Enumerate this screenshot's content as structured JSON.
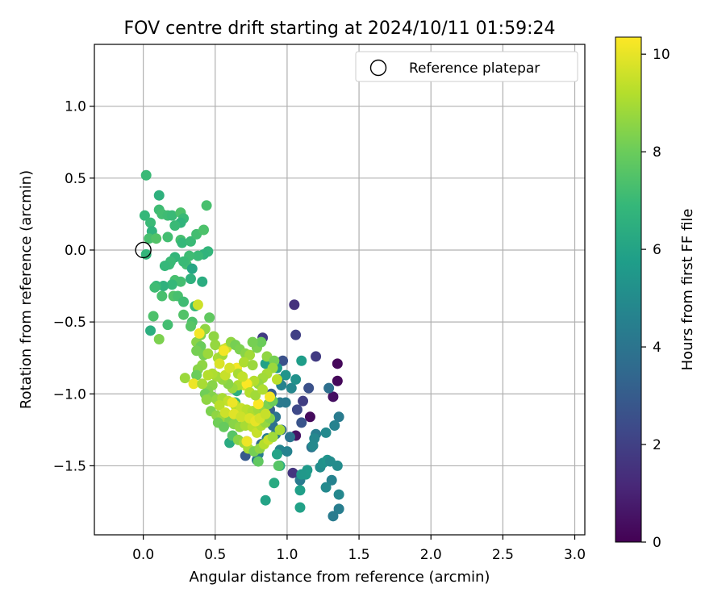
{
  "chart_data": {
    "type": "scatter",
    "title": "FOV centre drift starting at 2024/10/11 01:59:24",
    "xlabel": "Angular distance from reference (arcmin)",
    "ylabel": "Rotation from reference (arcmin)",
    "xlim": [
      -0.34,
      3.07
    ],
    "ylim": [
      -1.98,
      1.43
    ],
    "xticks": [
      0.0,
      0.5,
      1.0,
      1.5,
      2.0,
      2.5,
      3.0
    ],
    "xtick_labels": [
      "0.0",
      "0.5",
      "1.0",
      "1.5",
      "2.0",
      "2.5",
      "3.0"
    ],
    "yticks": [
      1.0,
      0.5,
      0.0,
      -0.5,
      -1.0,
      -1.5
    ],
    "ytick_labels": [
      "1.0",
      "0.5",
      "0.0",
      "−0.5",
      "−1.0",
      "−1.5"
    ],
    "grid": true,
    "legend": {
      "position": "top-right",
      "entries": [
        "Reference platepar"
      ]
    },
    "reference_point": {
      "x": 0.0,
      "y": 0.0
    },
    "colorbar": {
      "label": "Hours from first FF file",
      "range": [
        0,
        10.35
      ],
      "ticks": [
        0,
        2,
        4,
        6,
        8,
        10
      ],
      "tick_labels": [
        "0",
        "2",
        "4",
        "6",
        "8",
        "10"
      ],
      "colormap": "viridis"
    },
    "series": [
      {
        "points": [
          [
            1.35,
            -0.79,
            0.2
          ],
          [
            1.35,
            -0.91,
            0.2
          ],
          [
            1.32,
            -1.02,
            0.4
          ],
          [
            1.16,
            -1.16,
            0.3
          ],
          [
            1.06,
            -1.29,
            0.5
          ],
          [
            1.05,
            -0.38,
            1.5
          ],
          [
            1.06,
            -0.59,
            2.0
          ],
          [
            0.83,
            -0.61,
            1.8
          ],
          [
            1.2,
            -0.74,
            1.8
          ],
          [
            1.11,
            -1.05,
            1.9
          ],
          [
            1.04,
            -1.55,
            1.6
          ],
          [
            1.07,
            -1.11,
            2.3
          ],
          [
            1.15,
            -0.96,
            2.6
          ],
          [
            0.72,
            -1.33,
            2.8
          ],
          [
            0.71,
            -1.43,
            2.9
          ],
          [
            1.1,
            -1.2,
            2.7
          ],
          [
            0.97,
            -0.77,
            2.6
          ],
          [
            1.29,
            -0.96,
            3.8
          ],
          [
            1.17,
            -1.37,
            4.0
          ],
          [
            1.09,
            -1.6,
            4.3
          ],
          [
            1.36,
            -1.16,
            4.3
          ],
          [
            1.33,
            -1.22,
            4.6
          ],
          [
            1.31,
            -1.6,
            4.6
          ],
          [
            1.36,
            -1.7,
            4.8
          ],
          [
            1.36,
            -1.8,
            4.4
          ],
          [
            1.32,
            -1.85,
            4.3
          ],
          [
            1.27,
            -1.65,
            4.9
          ],
          [
            1.23,
            -1.51,
            5.0
          ],
          [
            1.25,
            -1.48,
            5.2
          ],
          [
            1.28,
            -1.46,
            5.4
          ],
          [
            1.3,
            -1.47,
            5.0
          ],
          [
            1.35,
            -1.5,
            5.0
          ],
          [
            1.27,
            -1.27,
            4.9
          ],
          [
            1.2,
            -1.28,
            4.4
          ],
          [
            1.19,
            -1.31,
            4.8
          ],
          [
            1.18,
            -1.36,
            4.9
          ],
          [
            1.14,
            -1.53,
            5.6
          ],
          [
            1.13,
            -1.56,
            5.6
          ],
          [
            1.1,
            -1.56,
            5.5
          ],
          [
            1.09,
            -1.67,
            5.8
          ],
          [
            1.09,
            -1.79,
            5.9
          ],
          [
            1.1,
            -0.77,
            5.7
          ],
          [
            0.99,
            -1.06,
            4.2
          ],
          [
            0.95,
            -1.06,
            4.2
          ],
          [
            0.92,
            -1.16,
            4.0
          ],
          [
            0.92,
            -1.28,
            4.4
          ],
          [
            0.95,
            -1.39,
            4.7
          ],
          [
            1.0,
            -1.4,
            4.6
          ],
          [
            1.02,
            -1.3,
            4.0
          ],
          [
            0.96,
            -1.25,
            3.6
          ],
          [
            0.88,
            -1.11,
            3.2
          ],
          [
            0.89,
            -1.0,
            3.0
          ],
          [
            0.94,
            -0.9,
            2.8
          ],
          [
            0.82,
            -1.35,
            3.5
          ],
          [
            0.79,
            -1.46,
            4.1
          ],
          [
            0.8,
            -1.42,
            4.3
          ],
          [
            0.86,
            -1.31,
            4.3
          ],
          [
            0.9,
            -1.22,
            3.9
          ],
          [
            0.96,
            -0.94,
            4.6
          ],
          [
            1.03,
            -0.96,
            4.8
          ],
          [
            1.06,
            -0.9,
            5.2
          ],
          [
            0.99,
            -0.87,
            5.4
          ],
          [
            0.93,
            -0.82,
            5.6
          ],
          [
            0.85,
            -0.79,
            5.9
          ],
          [
            0.95,
            -1.5,
            6.2
          ],
          [
            0.93,
            -1.42,
            6.0
          ],
          [
            0.85,
            -1.74,
            6.0
          ],
          [
            0.91,
            -1.62,
            6.3
          ],
          [
            0.6,
            -1.34,
            6.3
          ],
          [
            0.62,
            -1.2,
            6.5
          ],
          [
            0.64,
            -1.06,
            6.8
          ],
          [
            0.65,
            -0.98,
            6.5
          ],
          [
            0.01,
            0.24,
            6.9
          ],
          [
            0.05,
            0.19,
            7.0
          ],
          [
            0.11,
            0.38,
            6.6
          ],
          [
            0.11,
            0.28,
            7.1
          ],
          [
            0.13,
            0.25,
            7.2
          ],
          [
            0.17,
            0.24,
            7.1
          ],
          [
            0.2,
            0.24,
            7.0
          ],
          [
            0.26,
            0.26,
            7.4
          ],
          [
            0.28,
            0.22,
            7.0
          ],
          [
            0.26,
            0.19,
            6.7
          ],
          [
            0.22,
            0.17,
            7.0
          ],
          [
            0.06,
            0.13,
            6.7
          ],
          [
            0.04,
            0.08,
            7.3
          ],
          [
            0.09,
            0.08,
            7.5
          ],
          [
            0.17,
            0.09,
            7.2
          ],
          [
            0.26,
            0.07,
            7.3
          ],
          [
            0.27,
            0.05,
            6.9
          ],
          [
            0.33,
            0.06,
            7.0
          ],
          [
            0.37,
            0.11,
            7.2
          ],
          [
            0.42,
            0.14,
            7.4
          ],
          [
            0.44,
            0.31,
            7.3
          ],
          [
            0.45,
            -0.01,
            6.8
          ],
          [
            0.42,
            -0.03,
            6.7
          ],
          [
            0.38,
            -0.04,
            7.0
          ],
          [
            0.32,
            -0.04,
            7.1
          ],
          [
            0.3,
            -0.1,
            7.2
          ],
          [
            0.28,
            -0.08,
            7.0
          ],
          [
            0.34,
            -0.13,
            6.1
          ],
          [
            0.22,
            -0.05,
            6.8
          ],
          [
            0.19,
            -0.08,
            7.0
          ],
          [
            0.18,
            -0.1,
            7.0
          ],
          [
            0.15,
            -0.11,
            6.9
          ],
          [
            0.22,
            -0.21,
            7.3
          ],
          [
            0.26,
            -0.22,
            7.2
          ],
          [
            0.33,
            -0.2,
            6.6
          ],
          [
            0.41,
            -0.22,
            6.4
          ],
          [
            0.2,
            -0.24,
            6.9
          ],
          [
            0.14,
            -0.25,
            6.6
          ],
          [
            0.09,
            -0.25,
            6.9
          ],
          [
            0.08,
            -0.26,
            7.1
          ],
          [
            0.13,
            -0.32,
            7.3
          ],
          [
            0.21,
            -0.32,
            7.5
          ],
          [
            0.24,
            -0.32,
            7.3
          ],
          [
            0.28,
            -0.36,
            7.1
          ],
          [
            0.36,
            -0.39,
            7.0
          ],
          [
            0.28,
            -0.45,
            7.5
          ],
          [
            0.34,
            -0.5,
            7.4
          ],
          [
            0.33,
            -0.53,
            7.6
          ],
          [
            0.17,
            -0.52,
            7.2
          ],
          [
            0.07,
            -0.46,
            7.4
          ],
          [
            0.05,
            -0.56,
            6.5
          ],
          [
            0.02,
            0.52,
            7.0
          ],
          [
            0.02,
            -0.03,
            6.8
          ],
          [
            0.11,
            -0.62,
            8.3
          ],
          [
            0.37,
            -0.64,
            8.5
          ],
          [
            0.4,
            -0.59,
            8.3
          ],
          [
            0.43,
            -0.55,
            8.6
          ],
          [
            0.46,
            -0.47,
            7.8
          ],
          [
            0.49,
            -0.6,
            8.6
          ],
          [
            0.5,
            -0.66,
            8.7
          ],
          [
            0.4,
            -0.67,
            8.0
          ],
          [
            0.37,
            -0.7,
            8.2
          ],
          [
            0.42,
            -0.73,
            8.2
          ],
          [
            0.45,
            -0.72,
            8.8
          ],
          [
            0.52,
            -0.75,
            9.0
          ],
          [
            0.55,
            -0.73,
            8.9
          ],
          [
            0.56,
            -0.69,
            9.4
          ],
          [
            0.58,
            -0.68,
            9.6
          ],
          [
            0.61,
            -0.64,
            8.6
          ],
          [
            0.64,
            -0.66,
            8.2
          ],
          [
            0.67,
            -0.69,
            8.3
          ],
          [
            0.71,
            -0.72,
            8.5
          ],
          [
            0.74,
            -0.73,
            8.9
          ],
          [
            0.79,
            -0.68,
            8.3
          ],
          [
            0.82,
            -0.64,
            8.0
          ],
          [
            0.76,
            -0.64,
            8.2
          ],
          [
            0.86,
            -0.74,
            8.6
          ],
          [
            0.91,
            -0.77,
            8.2
          ],
          [
            0.9,
            -0.82,
            8.8
          ],
          [
            0.86,
            -0.86,
            9.0
          ],
          [
            0.83,
            -0.89,
            8.9
          ],
          [
            0.8,
            -0.93,
            8.7
          ],
          [
            0.77,
            -0.91,
            9.2
          ],
          [
            0.73,
            -0.93,
            9.3
          ],
          [
            0.7,
            -0.94,
            9.6
          ],
          [
            0.66,
            -0.94,
            9.1
          ],
          [
            0.62,
            -0.96,
            8.8
          ],
          [
            0.59,
            -0.93,
            8.5
          ],
          [
            0.55,
            -0.9,
            8.7
          ],
          [
            0.51,
            -0.88,
            8.9
          ],
          [
            0.48,
            -0.86,
            9.1
          ],
          [
            0.45,
            -0.87,
            9.2
          ],
          [
            0.41,
            -0.8,
            8.6
          ],
          [
            0.38,
            -0.83,
            8.5
          ],
          [
            0.37,
            -0.87,
            8.0
          ],
          [
            0.35,
            -0.93,
            10.1
          ],
          [
            0.29,
            -0.89,
            8.8
          ],
          [
            0.48,
            -0.94,
            8.5
          ],
          [
            0.45,
            -0.98,
            8.4
          ],
          [
            0.43,
            -1.0,
            8.1
          ],
          [
            0.48,
            -1.02,
            8.4
          ],
          [
            0.51,
            -1.04,
            8.7
          ],
          [
            0.55,
            -1.03,
            9.0
          ],
          [
            0.59,
            -1.05,
            9.4
          ],
          [
            0.64,
            -1.08,
            9.2
          ],
          [
            0.68,
            -1.1,
            9.5
          ],
          [
            0.72,
            -1.11,
            9.3
          ],
          [
            0.76,
            -1.12,
            9.1
          ],
          [
            0.8,
            -1.11,
            8.9
          ],
          [
            0.84,
            -1.1,
            8.7
          ],
          [
            0.87,
            -1.07,
            8.3
          ],
          [
            0.9,
            -1.05,
            8.0
          ],
          [
            0.47,
            -1.12,
            8.3
          ],
          [
            0.51,
            -1.15,
            8.6
          ],
          [
            0.55,
            -1.16,
            8.8
          ],
          [
            0.6,
            -1.19,
            8.3
          ],
          [
            0.63,
            -1.21,
            8.5
          ],
          [
            0.67,
            -1.23,
            8.7
          ],
          [
            0.71,
            -1.22,
            9.0
          ],
          [
            0.76,
            -1.23,
            9.3
          ],
          [
            0.79,
            -1.27,
            9.5
          ],
          [
            0.82,
            -1.22,
            9.1
          ],
          [
            0.85,
            -1.2,
            8.7
          ],
          [
            0.88,
            -1.17,
            8.4
          ],
          [
            0.52,
            -1.2,
            8.1
          ],
          [
            0.56,
            -1.23,
            7.9
          ],
          [
            0.62,
            -1.29,
            7.6
          ],
          [
            0.66,
            -1.32,
            8.5
          ],
          [
            0.7,
            -1.34,
            8.8
          ],
          [
            0.73,
            -1.38,
            9.0
          ],
          [
            0.77,
            -1.4,
            8.2
          ],
          [
            0.81,
            -1.38,
            8.6
          ],
          [
            0.84,
            -1.35,
            9.2
          ],
          [
            0.87,
            -1.32,
            9.5
          ],
          [
            0.9,
            -1.3,
            8.9
          ],
          [
            0.8,
            -1.47,
            7.8
          ],
          [
            0.94,
            -1.5,
            7.6
          ],
          [
            0.95,
            -1.25,
            9.0
          ],
          [
            0.93,
            -0.9,
            9.3
          ],
          [
            0.88,
            -1.02,
            10.2
          ],
          [
            0.8,
            -1.07,
            10.3
          ],
          [
            0.72,
            -0.93,
            10.3
          ],
          [
            0.65,
            -0.82,
            10.2
          ],
          [
            0.62,
            -1.06,
            10.1
          ],
          [
            0.56,
            -0.7,
            10.2
          ],
          [
            0.39,
            -0.58,
            10.2
          ],
          [
            0.38,
            -0.38,
            9.6
          ],
          [
            0.72,
            -1.33,
            10.1
          ],
          [
            0.66,
            -0.86,
            9.0
          ],
          [
            0.69,
            -0.88,
            9.4
          ],
          [
            0.74,
            -0.99,
            9.2
          ],
          [
            0.78,
            -1.01,
            8.9
          ],
          [
            0.83,
            -0.97,
            9.1
          ],
          [
            0.57,
            -0.87,
            9.5
          ],
          [
            0.6,
            -0.82,
            9.7
          ],
          [
            0.53,
            -0.79,
            9.8
          ],
          [
            0.7,
            -0.78,
            9.1
          ],
          [
            0.76,
            -0.8,
            8.8
          ],
          [
            0.41,
            -0.93,
            9.0
          ],
          [
            0.44,
            -1.04,
            8.6
          ],
          [
            0.53,
            -1.08,
            9.3
          ],
          [
            0.57,
            -1.13,
            9.6
          ],
          [
            0.63,
            -1.14,
            9.9
          ],
          [
            0.68,
            -1.16,
            9.6
          ],
          [
            0.74,
            -1.17,
            9.8
          ],
          [
            0.78,
            -1.19,
            10.0
          ],
          [
            0.81,
            -1.17,
            9.7
          ],
          [
            0.85,
            -1.14,
            9.5
          ]
        ]
      }
    ]
  }
}
